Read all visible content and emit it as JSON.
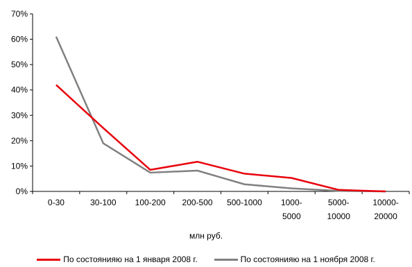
{
  "chart_data": {
    "type": "line",
    "title": "",
    "xlabel": "млн руб.",
    "ylabel": "",
    "ylim": [
      0,
      70
    ],
    "yticks": [
      "0%",
      "10%",
      "20%",
      "30%",
      "40%",
      "50%",
      "60%",
      "70%"
    ],
    "categories": [
      [
        "0-30"
      ],
      [
        "30-100"
      ],
      [
        "100-200"
      ],
      [
        "200-500"
      ],
      [
        "500-1000"
      ],
      [
        "1000-",
        "5000"
      ],
      [
        "5000-",
        "10000"
      ],
      [
        "10000-",
        "20000"
      ]
    ],
    "series": [
      {
        "name": "По состоянияю на 1 января 2008 г.",
        "color": "#e8000b",
        "values": [
          42,
          25,
          8.5,
          11.7,
          7,
          5.3,
          0.6,
          0
        ]
      },
      {
        "name": "По состоянияю на 1 ноября 2008 г.",
        "color": "#808080",
        "values": [
          61,
          19,
          7.4,
          8.2,
          2.8,
          1.2,
          0.2,
          0
        ]
      }
    ],
    "grid": false,
    "legend_position": "bottom"
  }
}
